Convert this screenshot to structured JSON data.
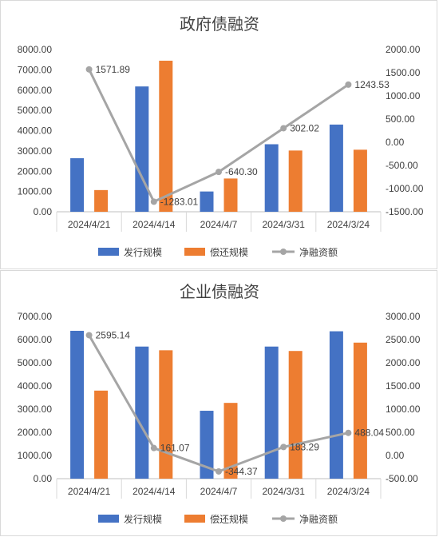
{
  "legend_labels": [
    "发行规模",
    "偿还规模",
    "净融资额"
  ],
  "colors": {
    "issue": "#4472c4",
    "repay": "#ed7d31",
    "net": "#a5a5a5"
  },
  "chart_data": [
    {
      "type": "bar",
      "title": "政府债融资",
      "categories": [
        "2024/4/21",
        "2024/4/14",
        "2024/4/7",
        "2024/3/31",
        "2024/3/24"
      ],
      "series": [
        {
          "name": "发行规模",
          "type": "bar",
          "axis": "left",
          "values": [
            2640,
            6180,
            1000,
            3330,
            4300
          ]
        },
        {
          "name": "偿还规模",
          "type": "bar",
          "axis": "left",
          "values": [
            1070,
            7450,
            1640,
            3020,
            3060
          ]
        },
        {
          "name": "净融资额",
          "type": "line",
          "axis": "right",
          "values": [
            1571.89,
            -1283.01,
            -640.3,
            302.02,
            1243.53
          ],
          "labels": [
            "1571.89",
            "-1283.01",
            "-640.30",
            "302.02",
            "1243.53"
          ]
        }
      ],
      "ylim": [
        0,
        8000
      ],
      "y_ticks": [
        "0.00",
        "1000.00",
        "2000.00",
        "3000.00",
        "4000.00",
        "5000.00",
        "6000.00",
        "7000.00",
        "8000.00"
      ],
      "y2lim": [
        -1500,
        2000
      ],
      "y2_ticks": [
        "-1500.00",
        "-1000.00",
        "-500.00",
        "0.00",
        "500.00",
        "1000.00",
        "1500.00",
        "2000.00"
      ],
      "legend": "bottom",
      "grid": false
    },
    {
      "type": "bar",
      "title": "企业债融资",
      "categories": [
        "2024/4/21",
        "2024/4/14",
        "2024/4/7",
        "2024/3/31",
        "2024/3/24"
      ],
      "series": [
        {
          "name": "发行规模",
          "type": "bar",
          "axis": "left",
          "values": [
            6380,
            5700,
            2930,
            5700,
            6360
          ]
        },
        {
          "name": "偿还规模",
          "type": "bar",
          "axis": "left",
          "values": [
            3800,
            5540,
            3270,
            5510,
            5870
          ]
        },
        {
          "name": "净融资额",
          "type": "line",
          "axis": "right",
          "values": [
            2595.14,
            161.07,
            -344.37,
            183.29,
            488.04
          ],
          "labels": [
            "2595.14",
            "161.07",
            "-344.37",
            "183.29",
            "488.04"
          ]
        }
      ],
      "ylim": [
        0,
        7000
      ],
      "y_ticks": [
        "0.00",
        "1000.00",
        "2000.00",
        "3000.00",
        "4000.00",
        "5000.00",
        "6000.00",
        "7000.00"
      ],
      "y2lim": [
        -500,
        3000
      ],
      "y2_ticks": [
        "-500.00",
        "0.00",
        "500.00",
        "1000.00",
        "1500.00",
        "2000.00",
        "2500.00",
        "3000.00"
      ],
      "legend": "bottom",
      "grid": false
    }
  ]
}
